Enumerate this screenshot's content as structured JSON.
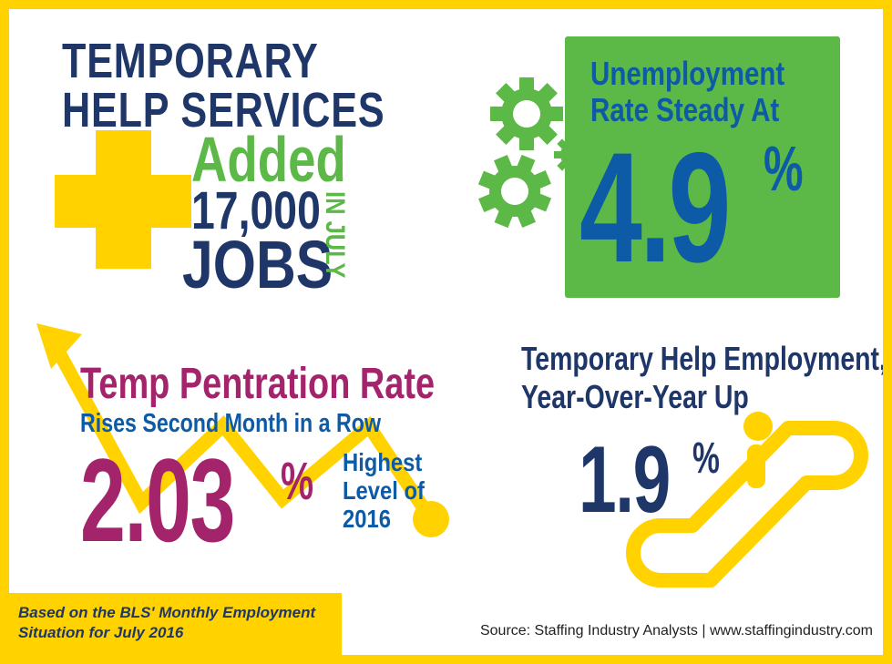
{
  "temp_help": {
    "line1": "TEMPORARY",
    "line2": "HELP SERVICES",
    "added": "Added",
    "number": "17,000",
    "jobs": "JOBS",
    "in_july": "IN JULY"
  },
  "unemployment": {
    "line1": "Unemployment",
    "line2": "Rate Steady At",
    "value": "4.9",
    "pct": "%"
  },
  "penetration": {
    "title": "Temp Pentration Rate",
    "subtitle": "Rises Second Month in a Row",
    "value": "2.03",
    "pct": "%",
    "note1": "Highest",
    "note2": "Level of",
    "note3": "2016"
  },
  "yoy": {
    "line1": "Temporary Help Employment,",
    "line2": "Year-Over-Year Up",
    "value": "1.9",
    "pct": "%"
  },
  "footer": {
    "basis_line1": "Based on the BLS' Monthly Employment",
    "basis_line2": "Situation for July 2016",
    "source": "Source: Staffing Industry Analysts | www.staffingindustry.com"
  },
  "colors": {
    "background_border": "#ffd200",
    "navy": "#1f3668",
    "green": "#5cb947",
    "blue": "#0d5aa7",
    "magenta": "#a3246b"
  },
  "icons": [
    "plus-icon",
    "gears-icon",
    "trend-arrow-icon",
    "escalator-person-icon"
  ]
}
